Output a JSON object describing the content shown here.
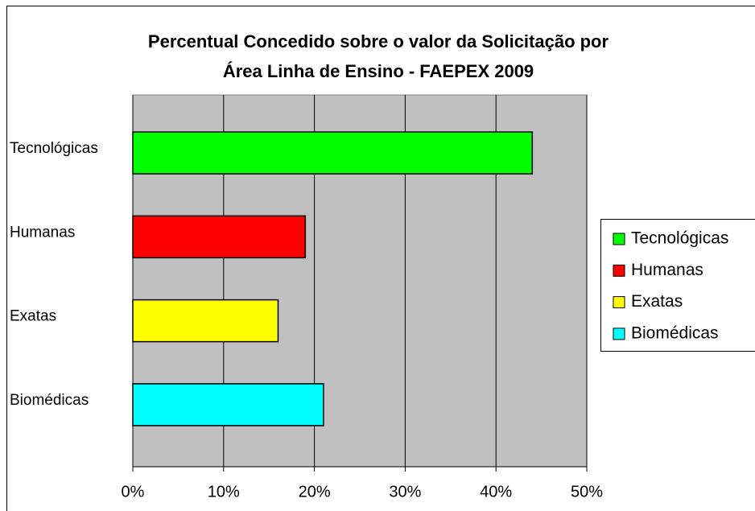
{
  "chart_data": {
    "type": "barh",
    "title": [
      "Percentual Concedido sobre o valor da Solicitação por",
      "Área Linha de Ensino - FAEPEX 2009"
    ],
    "categories": [
      "Tecnológicas",
      "Humanas",
      "Exatas",
      "Biomédicas"
    ],
    "values": [
      44,
      19,
      16,
      21
    ],
    "colors": [
      "#00ff00",
      "#ff0000",
      "#ffff00",
      "#00ffff"
    ],
    "xlim": [
      0,
      50
    ],
    "xticks": [
      {
        "value": 0,
        "label": "0%"
      },
      {
        "value": 10,
        "label": "10%"
      },
      {
        "value": 20,
        "label": "20%"
      },
      {
        "value": 30,
        "label": "30%"
      },
      {
        "value": 40,
        "label": "40%"
      },
      {
        "value": 50,
        "label": "50%"
      }
    ],
    "grid": true,
    "legend": "right"
  }
}
